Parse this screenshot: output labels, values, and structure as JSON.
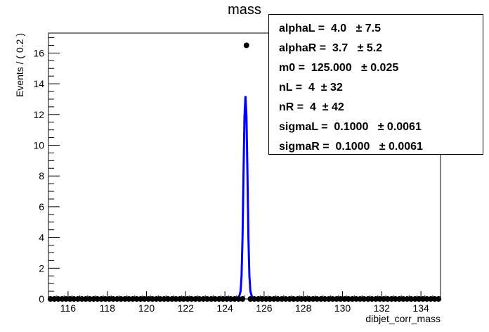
{
  "chart_data": {
    "type": "scatter",
    "title": "mass",
    "xlabel": "dibjet_corr_mass",
    "ylabel": "Events / ( 0.2 )",
    "xlim": [
      115,
      135
    ],
    "ylim": [
      0,
      17.3
    ],
    "x_ticks": [
      116,
      118,
      120,
      122,
      124,
      126,
      128,
      130,
      132,
      134
    ],
    "y_ticks": [
      0,
      2,
      4,
      6,
      8,
      10,
      12,
      14,
      16
    ],
    "grid": false,
    "series": [
      {
        "type": "points",
        "color": "#000000",
        "bin_width": 0.2,
        "x_start": 115.1,
        "values_note": "points at 0 except the peak bin",
        "peak_x": 125.1,
        "peak_y": 16.5
      },
      {
        "type": "line",
        "color": "#0000ff",
        "x": [
          115.0,
          124.5,
          124.7,
          124.8,
          124.85,
          124.9,
          124.95,
          125.0,
          125.05,
          125.1,
          125.15,
          125.2,
          125.25,
          125.3,
          125.4,
          125.6,
          135.0
        ],
        "y": [
          0.0,
          0.0,
          0.05,
          0.5,
          1.5,
          4.0,
          8.2,
          11.9,
          13.2,
          11.9,
          8.2,
          4.0,
          1.5,
          0.5,
          0.05,
          0.0,
          0.0
        ]
      }
    ]
  },
  "stats": [
    {
      "label": "alphaL =  4.0   ",
      "value": "± 7.5"
    },
    {
      "label": "alphaR =  3.7   ",
      "value": "± 5.2"
    },
    {
      "label": "m0 =  125.000   ",
      "value": "± 0.025"
    },
    {
      "label": "nL =  4  ",
      "value": "± 32"
    },
    {
      "label": "nR =  4  ",
      "value": "± 42"
    },
    {
      "label": "sigmaL =  0.1000   ",
      "value": "± 0.0061"
    },
    {
      "label": "sigmaR =  0.1000   ",
      "value": "± 0.0061"
    }
  ]
}
